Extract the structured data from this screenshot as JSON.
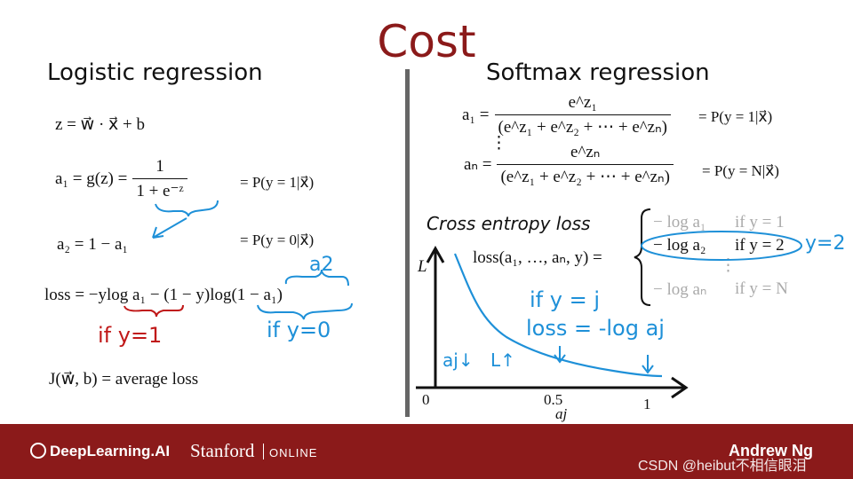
{
  "slide": {
    "title": "Cost",
    "left_heading": "Logistic regression",
    "right_heading": "Softmax regression"
  },
  "logistic": {
    "eq_z": "z = w⃗ · x⃗ + b",
    "eq_a1_lhs": "a₁ = g(z) =",
    "eq_a1_num": "1",
    "eq_a1_den": "1 + e⁻ᶻ",
    "eq_a1_prob": "= P(y = 1|x⃗)",
    "eq_a2": "a₂ = 1 − a₁",
    "eq_a2_prob": "= P(y = 0|x⃗)",
    "loss_prefix": "loss = −y",
    "loss_log_a1": "log a₁",
    "loss_middle": " − (1 − y)",
    "loss_log_1ma1": "log(1 − a₁)",
    "cost_eq": "J(w⃗, b) = average loss"
  },
  "softmax": {
    "a1_lhs": "a₁ =",
    "a1_num": "e^z₁",
    "a1_den": "(e^z₁ + e^z₂ + ⋯ + e^zₙ)",
    "a1_prob": "= P(y = 1|x⃗)",
    "vdots": "⋮",
    "aN_lhs": "aₙ =",
    "aN_num": "e^zₙ",
    "aN_den": "(e^z₁ + e^z₂ + ⋯ + e^zₙ)",
    "aN_prob": "= P(y = N|x⃗)",
    "cross_entropy_label": "Cross entropy loss",
    "loss_lhs": "loss(a₁, …, aₙ, y) =",
    "cases": [
      {
        "expr": "− log a₁",
        "cond": "if y = 1"
      },
      {
        "expr": "− log a₂",
        "cond": "if y = 2"
      },
      {
        "expr": "⋮",
        "cond": ""
      },
      {
        "expr": "− log aₙ",
        "cond": "if y = N"
      }
    ]
  },
  "plot": {
    "y_label": "L",
    "x_ticks": [
      "0",
      "0.5",
      "1"
    ],
    "x_label": "aj"
  },
  "annotations": {
    "a2": "a2",
    "if_y_1": "if y=1",
    "if_y_0": "if y=0",
    "if_y_j": "if y = j",
    "loss_eq_log": "loss = -log aj",
    "aj_down": "aj↓",
    "L_up": "L↑",
    "y_eq_2": "y=2"
  },
  "footer": {
    "brand1": "DeepLearning.AI",
    "brand2": "Stanford",
    "brand2_sub": "ONLINE",
    "presenter": "Andrew Ng",
    "watermark": "CSDN @heibut不相信眼泪"
  },
  "colors": {
    "title": "#8b1a1a",
    "footer_bg": "#8b1a1a",
    "annotation_red": "#c01818",
    "annotation_blue": "#1e90d8"
  }
}
